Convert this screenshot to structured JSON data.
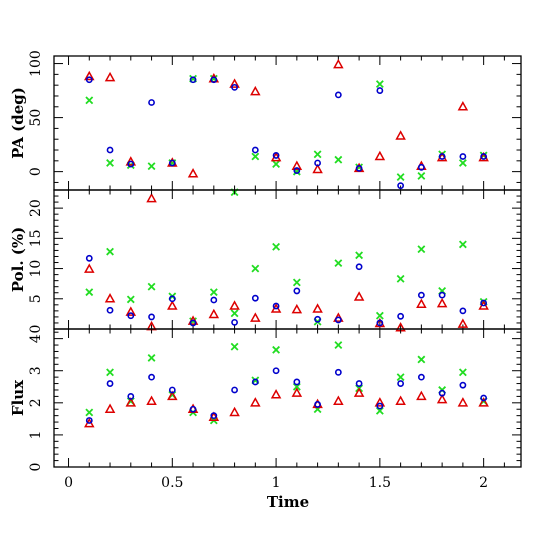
{
  "chart_data": {
    "type": "scatter",
    "xlabel": "Time",
    "x_ticks": [
      "0",
      "0.5",
      "1",
      "1.5",
      "2"
    ],
    "xlim": [
      -0.07,
      2.18
    ],
    "series_colors": {
      "blue": "#0000cc",
      "red": "#dd0000",
      "green": "#22dd22"
    },
    "markers": {
      "blue": "circle",
      "red": "triangle",
      "green": "cross"
    },
    "x": [
      0.1,
      0.2,
      0.3,
      0.4,
      0.5,
      0.6,
      0.7,
      0.8,
      0.9,
      1.0,
      1.1,
      1.2,
      1.3,
      1.4,
      1.5,
      1.6,
      1.7,
      1.8,
      1.9,
      2.0
    ],
    "panels": [
      {
        "key": "pa",
        "ylabel": "PA (deg)",
        "ylim": [
          -17,
          107
        ],
        "y_ticks": [
          0,
          50,
          100
        ],
        "y_tick_labels": [
          "0",
          "50",
          "100"
        ],
        "blue": [
          85,
          20,
          7,
          64,
          8,
          85,
          85,
          78,
          20,
          15,
          1,
          8,
          71,
          3,
          75,
          -13,
          4,
          14,
          14,
          14
        ],
        "red": [
          88,
          87,
          9,
          -25,
          8,
          -2,
          86,
          81,
          74,
          13,
          5,
          2,
          99,
          3,
          14,
          33,
          5,
          13,
          60,
          13
        ],
        "green": [
          66,
          8,
          6,
          5,
          8,
          86,
          86,
          -19,
          14,
          7,
          0,
          16,
          11,
          4,
          81,
          -5,
          -4,
          16,
          8,
          15
        ]
      },
      {
        "key": "pol",
        "ylabel": "Pol. (%)",
        "ylim": [
          0,
          23
        ],
        "y_ticks": [
          0,
          5,
          10,
          15,
          20
        ],
        "y_tick_labels": [
          "0",
          "5",
          "10",
          "15",
          "20"
        ],
        "blue": [
          11.7,
          3.1,
          2.2,
          2.0,
          5.0,
          1.0,
          4.8,
          1.1,
          5.1,
          3.8,
          6.3,
          1.6,
          1.5,
          10.3,
          1.0,
          2.1,
          5.6,
          5.6,
          3.0,
          4.3
        ],
        "red": [
          9.9,
          5.0,
          2.8,
          0.4,
          3.8,
          1.3,
          2.4,
          3.8,
          1.8,
          3.3,
          3.2,
          3.3,
          1.8,
          5.3,
          0.9,
          0.2,
          4.1,
          4.2,
          0.8,
          3.8
        ],
        "green": [
          6.1,
          12.8,
          4.9,
          7.0,
          5.4,
          1.3,
          6.1,
          2.6,
          10.0,
          13.6,
          7.7,
          1.2,
          10.9,
          12.2,
          2.2,
          8.3,
          13.2,
          6.3,
          14.0,
          4.5
        ]
      },
      {
        "key": "flux",
        "ylabel": "Flux",
        "ylim": [
          0,
          4.3
        ],
        "y_ticks": [
          0,
          1,
          2,
          3,
          4
        ],
        "y_tick_labels": [
          "0",
          "1",
          "2",
          "3",
          "4"
        ],
        "blue": [
          1.45,
          2.6,
          2.2,
          2.8,
          2.4,
          1.8,
          1.6,
          2.4,
          2.65,
          3.0,
          2.65,
          1.95,
          2.95,
          2.6,
          1.9,
          2.6,
          2.8,
          2.3,
          2.55,
          2.15
        ],
        "red": [
          1.35,
          1.8,
          2.0,
          2.05,
          2.2,
          1.8,
          1.55,
          1.7,
          2.0,
          2.25,
          2.3,
          1.95,
          2.05,
          2.3,
          2.0,
          2.05,
          2.2,
          2.1,
          2.0,
          2.0
        ],
        "green": [
          1.7,
          2.95,
          2.05,
          3.4,
          2.25,
          1.7,
          1.45,
          3.75,
          2.7,
          3.65,
          2.5,
          1.8,
          3.8,
          2.45,
          1.75,
          2.8,
          3.35,
          2.4,
          2.95,
          2.05
        ]
      }
    ]
  }
}
